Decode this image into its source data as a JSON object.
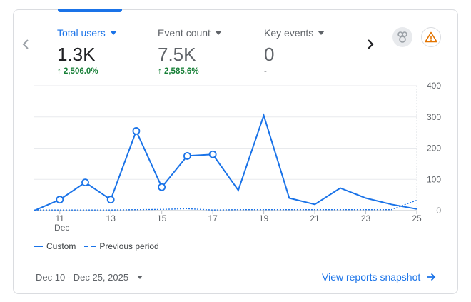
{
  "metrics": [
    {
      "label": "Total users",
      "value": "1.3K",
      "change": "2,506.0%",
      "active": true
    },
    {
      "label": "Event count",
      "value": "7.5K",
      "change": "2,585.6%",
      "active": false
    },
    {
      "label": "Key events",
      "value": "0",
      "change": "-",
      "active": false
    }
  ],
  "icons": {
    "prev": "chevron-left-icon",
    "next": "chevron-right-icon",
    "insights": "insights-icon",
    "warning": "warning-icon"
  },
  "colors": {
    "accent": "#1a73e8",
    "positive": "#188038",
    "warning": "#e37400"
  },
  "chart_data": {
    "type": "line",
    "x": [
      10,
      11,
      12,
      13,
      14,
      15,
      16,
      17,
      18,
      19,
      20,
      21,
      22,
      23,
      24,
      25
    ],
    "x_tick_labels": [
      "11",
      "13",
      "15",
      "17",
      "19",
      "21",
      "23",
      "25"
    ],
    "x_tick_values": [
      11,
      13,
      15,
      17,
      19,
      21,
      23,
      25
    ],
    "x_month_label": "Dec",
    "y_ticks": [
      0,
      100,
      200,
      300,
      400
    ],
    "ylim": [
      0,
      400
    ],
    "y_axis_side": "right",
    "grid": true,
    "series": [
      {
        "name": "Custom",
        "style": "solid",
        "values": [
          0,
          35,
          90,
          35,
          255,
          75,
          175,
          180,
          65,
          305,
          40,
          20,
          72,
          40,
          20,
          5
        ],
        "markers": [
          false,
          true,
          true,
          true,
          true,
          true,
          true,
          true,
          false,
          false,
          false,
          false,
          false,
          false,
          false,
          false
        ]
      },
      {
        "name": "Previous period",
        "style": "dashed",
        "values": [
          2,
          2,
          2,
          2,
          3,
          4,
          6,
          2,
          3,
          3,
          3,
          3,
          3,
          3,
          3,
          33
        ]
      }
    ]
  },
  "legend": {
    "custom": "Custom",
    "previous": "Previous period"
  },
  "footer": {
    "date_range": "Dec 10 - Dec 25, 2025",
    "snapshot_link": "View reports snapshot"
  }
}
